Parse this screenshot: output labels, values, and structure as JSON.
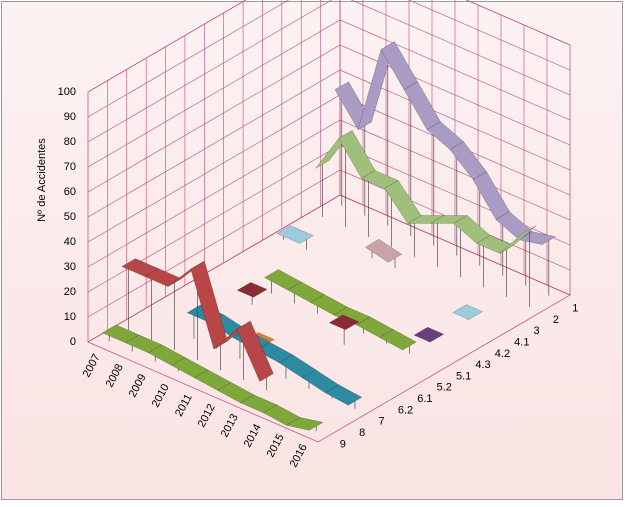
{
  "chart_data": {
    "type": "ribbon3d",
    "y_label": "Nº de Accidentes",
    "categories": [
      "2007",
      "2008",
      "2009",
      "2010",
      "2011",
      "2012",
      "2013",
      "2014",
      "2015",
      "2016"
    ],
    "series": [
      {
        "name": "1",
        "color": "#a99bc4",
        "values": [
          48,
          36,
          72,
          60,
          48,
          44,
          36,
          24,
          20,
          22
        ]
      },
      {
        "name": "2",
        "color": "#9fc07a",
        "values": [
          21,
          37,
          25,
          25,
          15,
          19,
          23,
          19,
          19,
          31
        ]
      },
      {
        "name": "3",
        "color": "#c9a3a8",
        "values": [
          null,
          null,
          null,
          6,
          4,
          null,
          null,
          null,
          null,
          null
        ]
      },
      {
        "name": "4.1",
        "color": "#9ccbdc",
        "values": [
          4,
          4,
          null,
          null,
          null,
          null,
          null,
          null,
          3,
          null
        ]
      },
      {
        "name": "4.2",
        "color": "#9ccbdc",
        "values": [
          null,
          null,
          null,
          null,
          null,
          null,
          null,
          null,
          null,
          null
        ]
      },
      {
        "name": "4.3",
        "color": "#6a3d7c",
        "values": [
          null,
          null,
          null,
          null,
          null,
          null,
          null,
          null,
          3,
          null
        ]
      },
      {
        "name": "5.1",
        "color": "#7fa83a",
        "values": [
          null,
          null,
          8,
          7,
          6,
          5,
          5,
          4,
          3,
          null
        ]
      },
      {
        "name": "5.2",
        "color": "#8b2b36",
        "values": [
          null,
          null,
          6,
          null,
          null,
          null,
          9,
          null,
          null,
          null
        ]
      },
      {
        "name": "6.1",
        "color": "#9ccbdc",
        "values": [
          null,
          null,
          null,
          null,
          null,
          null,
          null,
          null,
          null,
          null
        ]
      },
      {
        "name": "6.2",
        "color": "#d8842e",
        "values": [
          null,
          null,
          null,
          null,
          3,
          null,
          null,
          null,
          null,
          null
        ]
      },
      {
        "name": "7",
        "color": "#2e8aa0",
        "values": [
          null,
          null,
          12,
          12,
          10,
          9,
          8,
          6,
          4,
          3
        ]
      },
      {
        "name": "8",
        "color": "#b84646",
        "values": [
          27,
          27,
          27,
          38,
          10,
          22,
          5,
          null,
          null,
          null
        ]
      },
      {
        "name": "9",
        "color": "#7fa83a",
        "values": [
          5,
          5,
          5,
          4,
          3,
          2,
          1,
          1,
          0,
          2
        ]
      }
    ],
    "ylim": [
      0,
      100
    ],
    "yticks": [
      0,
      10,
      20,
      30,
      40,
      50,
      60,
      70,
      80,
      90,
      100
    ],
    "grid": true
  }
}
